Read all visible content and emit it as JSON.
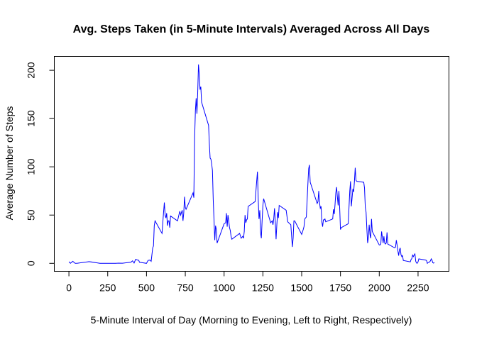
{
  "chart_data": {
    "type": "line",
    "title": "Avg. Steps Taken (in 5-Minute Intervals) Averaged Across All Days",
    "x_label": "5-Minute Interval of Day (Morning to Evening, Left to Right, Respectively)",
    "y_label": "Average Number of Steps",
    "x": [
      0,
      10,
      25,
      40,
      55,
      130,
      200,
      230,
      300,
      320,
      345,
      400,
      410,
      420,
      430,
      440,
      450,
      455,
      500,
      510,
      520,
      525,
      530,
      540,
      545,
      550,
      555,
      600,
      610,
      615,
      620,
      625,
      630,
      635,
      640,
      645,
      650,
      655,
      700,
      710,
      715,
      720,
      730,
      735,
      740,
      745,
      750,
      755,
      800,
      805,
      810,
      815,
      820,
      825,
      830,
      835,
      840,
      845,
      850,
      855,
      900,
      905,
      910,
      915,
      920,
      925,
      930,
      935,
      940,
      945,
      950,
      955,
      1000,
      1010,
      1015,
      1020,
      1025,
      1030,
      1035,
      1040,
      1045,
      1050,
      1100,
      1110,
      1115,
      1120,
      1125,
      1130,
      1135,
      1140,
      1145,
      1150,
      1155,
      1200,
      1210,
      1215,
      1220,
      1225,
      1230,
      1235,
      1240,
      1245,
      1250,
      1255,
      1300,
      1310,
      1315,
      1320,
      1325,
      1330,
      1335,
      1340,
      1345,
      1350,
      1355,
      1400,
      1410,
      1430,
      1440,
      1445,
      1450,
      1455,
      1500,
      1510,
      1515,
      1520,
      1525,
      1530,
      1535,
      1540,
      1545,
      1550,
      1555,
      1600,
      1605,
      1610,
      1615,
      1620,
      1625,
      1630,
      1635,
      1640,
      1645,
      1650,
      1655,
      1700,
      1705,
      1710,
      1715,
      1720,
      1725,
      1730,
      1735,
      1740,
      1745,
      1750,
      1755,
      1800,
      1805,
      1810,
      1815,
      1820,
      1825,
      1830,
      1835,
      1840,
      1845,
      1850,
      1855,
      1900,
      1905,
      1910,
      1915,
      1920,
      1925,
      1930,
      1935,
      1940,
      1945,
      1950,
      1955,
      2000,
      2005,
      2010,
      2015,
      2020,
      2025,
      2030,
      2035,
      2040,
      2045,
      2050,
      2055,
      2100,
      2105,
      2110,
      2115,
      2120,
      2125,
      2130,
      2135,
      2140,
      2145,
      2150,
      2155,
      2200,
      2205,
      2210,
      2215,
      2220,
      2225,
      2230,
      2235,
      2240,
      2245,
      2250,
      2255,
      2300,
      2305,
      2310,
      2315,
      2320,
      2325,
      2330,
      2335,
      2340,
      2345,
      2350,
      2355
    ],
    "series": [
      {
        "name": "Average Steps",
        "color": "#0000ff",
        "values": [
          1.7,
          0.1,
          2.1,
          0,
          0.1,
          1.8,
          0,
          0,
          0,
          0.2,
          0.1,
          1.2,
          2.6,
          0.3,
          4.1,
          3.5,
          3.1,
          1.1,
          0,
          3,
          3.3,
          3,
          2.1,
          16,
          18,
          39,
          44,
          31,
          53,
          63,
          50,
          47,
          52,
          39,
          44,
          44,
          37,
          49,
          44,
          51,
          54,
          50,
          55,
          44,
          52,
          69,
          58,
          56,
          73,
          68,
          129,
          158,
          171,
          155,
          177,
          206,
          196,
          180,
          183,
          167,
          143,
          124,
          109,
          108,
          103,
          96,
          66,
          45,
          24,
          39,
          35,
          21,
          41,
          42,
          52,
          38,
          50,
          44,
          37,
          34,
          28,
          25,
          31,
          26,
          27,
          28,
          26,
          33,
          50,
          42,
          45,
          46,
          59,
          64,
          85,
          95,
          66,
          46,
          55,
          32,
          26,
          44,
          60,
          67,
          42,
          44,
          40,
          46,
          57,
          43,
          25,
          40,
          53,
          47,
          60,
          55,
          43,
          40,
          17,
          26,
          44,
          44,
          30,
          35,
          38,
          46,
          47,
          48,
          65,
          82,
          98,
          102,
          84,
          62,
          64,
          75,
          63,
          57,
          59,
          43,
          38,
          45,
          45,
          46,
          43,
          46,
          56,
          51,
          61,
          73,
          79,
          69,
          60,
          75,
          57,
          35,
          37,
          41,
          58,
          75,
          85,
          59,
          68,
          77,
          74,
          85,
          99,
          86,
          85,
          84,
          78,
          58,
          53,
          36,
          21,
          27,
          40,
          30,
          26,
          46,
          33,
          19,
          19,
          20,
          33,
          27,
          21,
          28,
          21,
          20,
          21,
          32,
          20,
          16,
          17,
          24,
          19,
          13,
          8,
          14,
          16,
          9,
          7,
          8,
          3,
          1.5,
          4,
          5,
          8.5,
          7,
          8.7,
          9.8,
          2.2,
          0.3,
          0.1,
          1.6,
          4.6,
          3.3,
          2.8,
          0,
          0.8,
          1,
          1.6,
          2.6,
          4.7,
          3.3,
          0.6,
          0.2,
          1.1
        ]
      }
    ],
    "xlim": [
      -94.2,
      2449.2
    ],
    "ylim": [
      -8.25,
      214.4
    ],
    "xticks": [
      0,
      250,
      500,
      750,
      1000,
      1250,
      1500,
      1750,
      2000,
      2250
    ],
    "yticks": [
      0,
      50,
      100,
      150,
      200
    ]
  }
}
